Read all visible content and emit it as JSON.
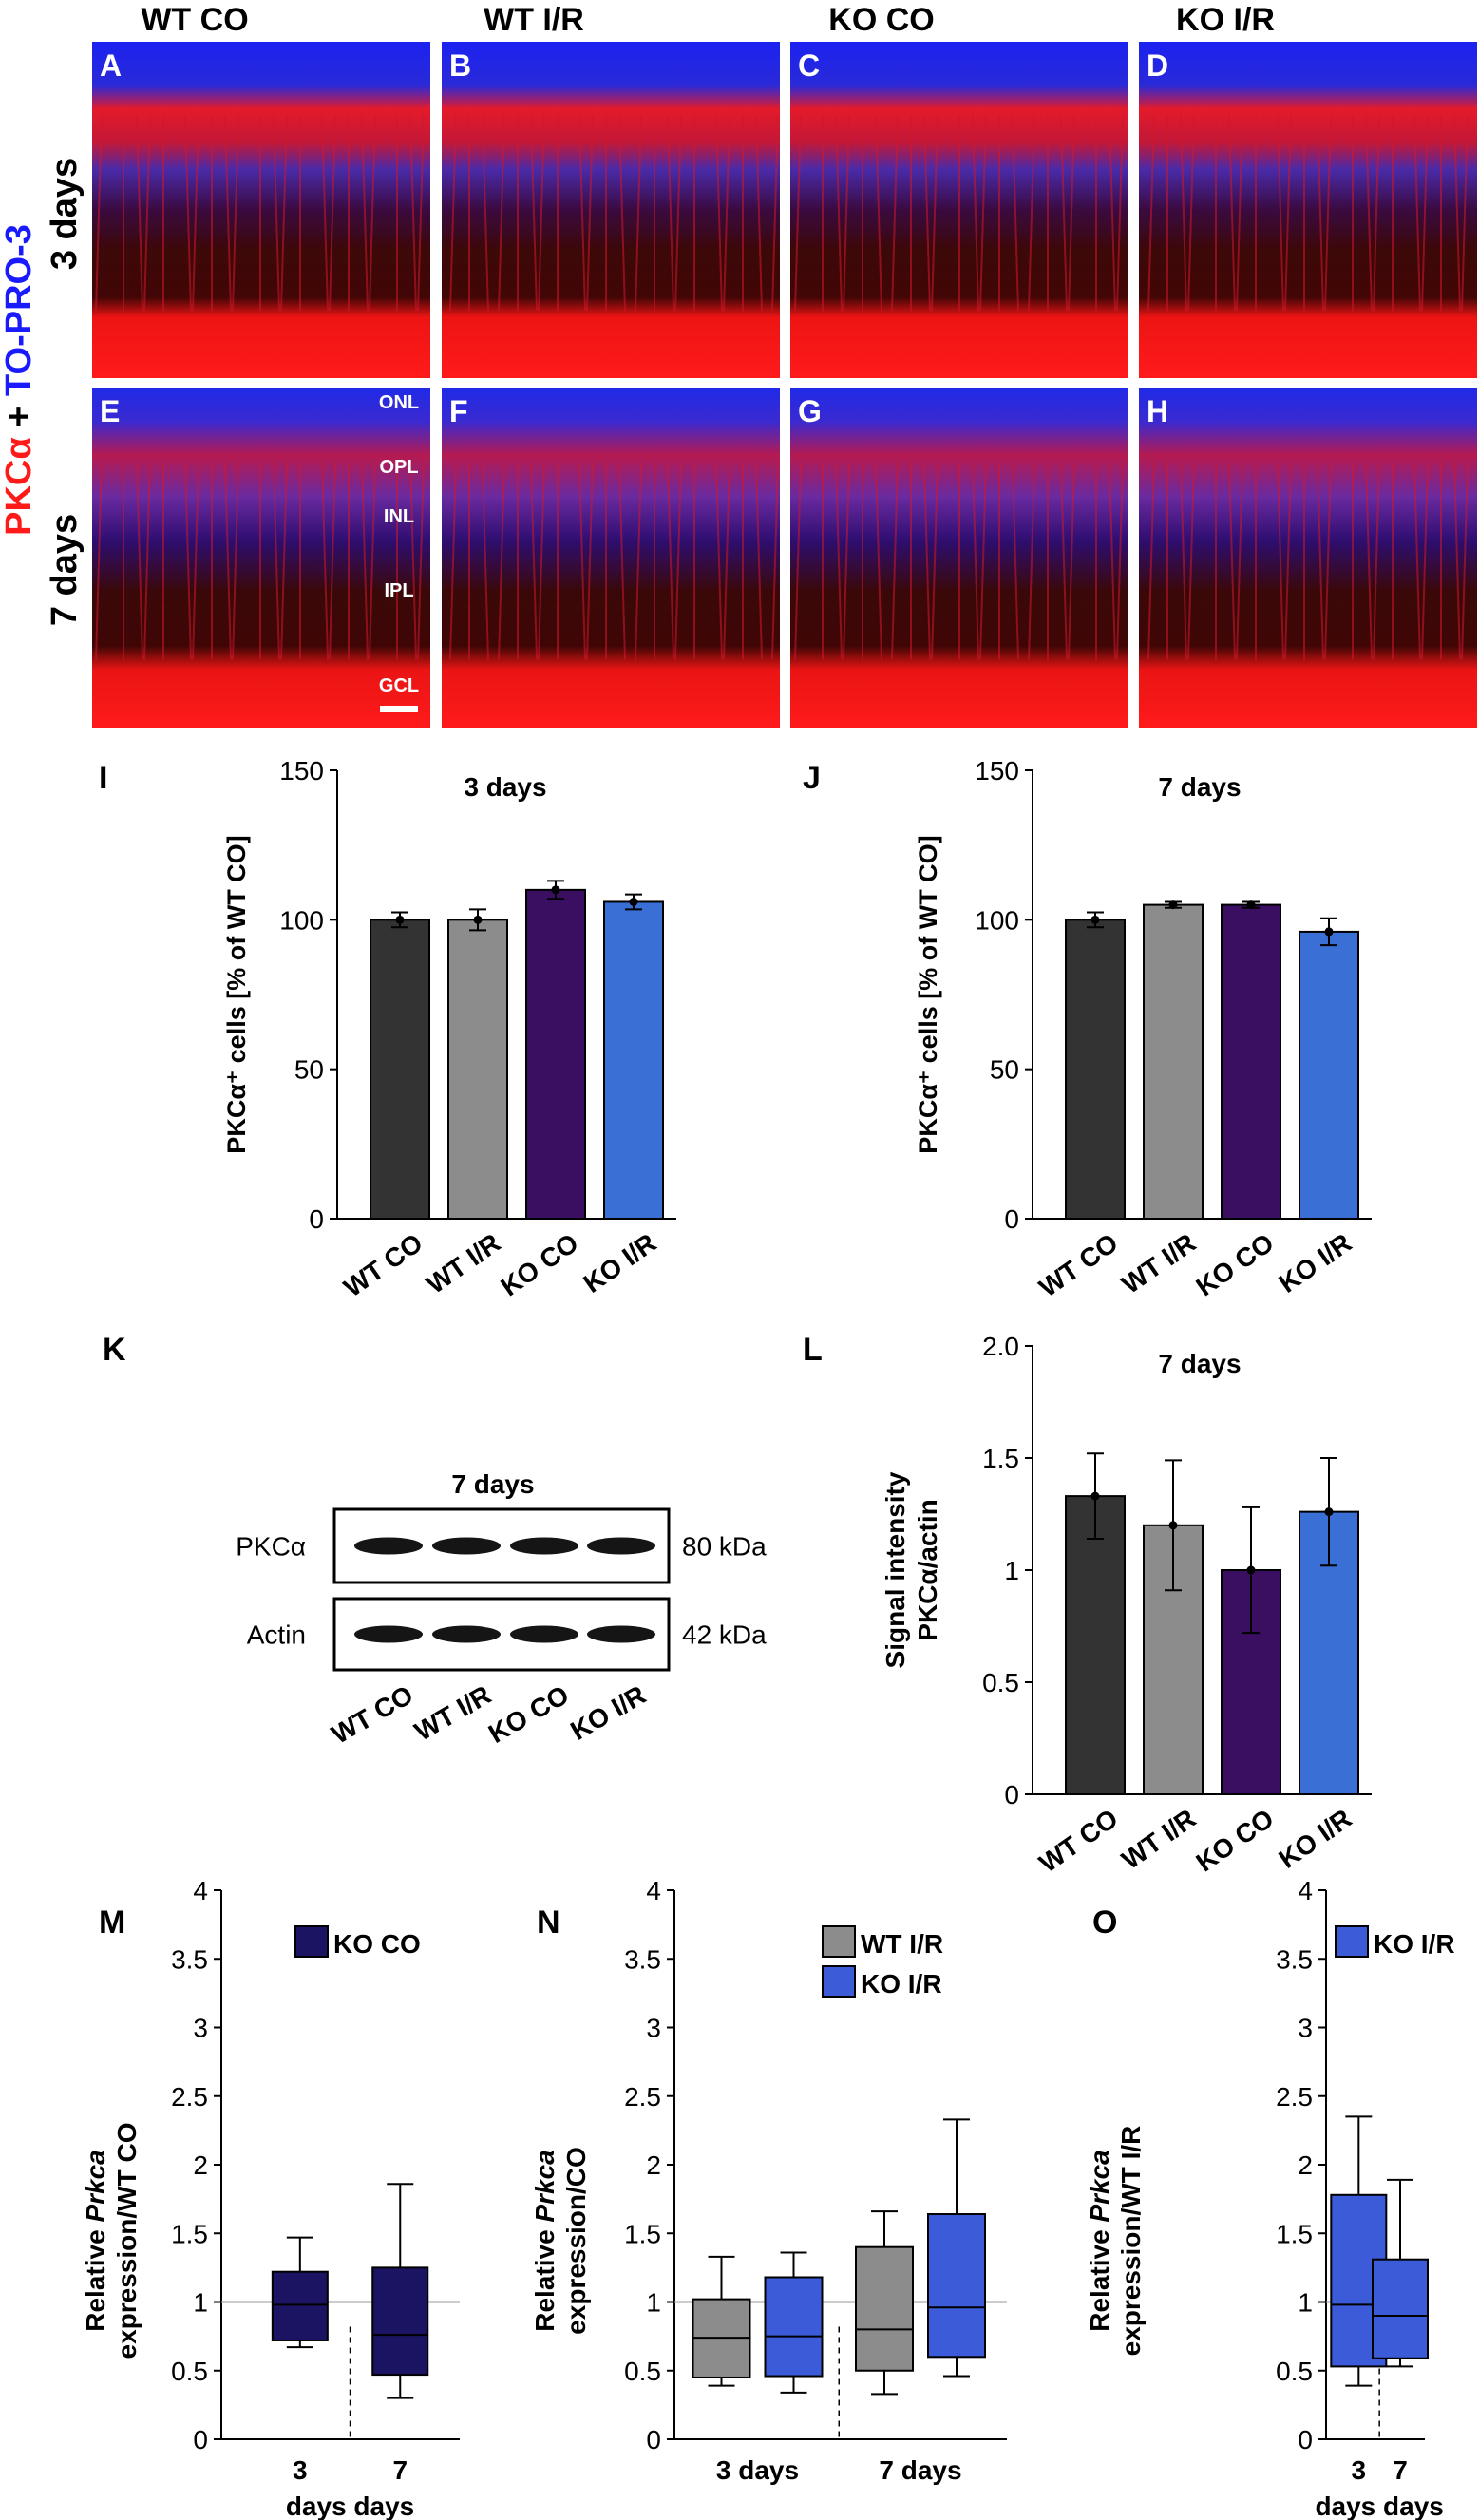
{
  "colors": {
    "WT CO": "#333333",
    "WT I/R": "#8c8c8c",
    "KO CO": "#3a0f62",
    "KO I/R": "#3a6fd6",
    "KO CO box": "#1b1463",
    "KO I/R box": "#3b5bd9",
    "WT I/R box": "#8c8c8c",
    "stain_red": "#ff1a1a",
    "stain_blue": "#1a1aff"
  },
  "micrograph": {
    "columns": [
      "WT CO",
      "WT I/R",
      "KO CO",
      "KO I/R"
    ],
    "rows": [
      "3 days",
      "7 days"
    ],
    "row_label_stain": [
      "PKCα",
      " + ",
      "TO-PRO-3"
    ],
    "panel_letters": [
      "A",
      "B",
      "C",
      "D",
      "E",
      "F",
      "G",
      "H"
    ],
    "layers": [
      "ONL",
      "OPL",
      "INL",
      "IPL",
      "GCL"
    ]
  },
  "blot": {
    "letter": "K",
    "title": "7 days",
    "bands": [
      {
        "protein": "PKCα",
        "size": "80 kDa"
      },
      {
        "protein": "Actin",
        "size": "42 kDa"
      }
    ],
    "lanes": [
      "WT CO",
      "WT I/R",
      "KO CO",
      "KO I/R"
    ]
  },
  "chart_data": [
    {
      "panel": "I",
      "type": "bar",
      "title": "3 days",
      "ylabel": "PKCα⁺ cells [% of WT CO]",
      "ylim": [
        0,
        150
      ],
      "yticks": [
        0,
        50,
        100,
        150
      ],
      "categories": [
        "WT CO",
        "WT I/R",
        "KO CO",
        "KO I/R"
      ],
      "values": [
        100,
        100,
        110,
        106
      ],
      "errors": [
        2.5,
        3.5,
        3,
        2.5
      ]
    },
    {
      "panel": "J",
      "type": "bar",
      "title": "7 days",
      "ylabel": "PKCα⁺ cells [% of WT CO]",
      "ylim": [
        0,
        150
      ],
      "yticks": [
        0,
        50,
        100,
        150
      ],
      "categories": [
        "WT CO",
        "WT I/R",
        "KO CO",
        "KO I/R"
      ],
      "values": [
        100,
        105,
        105,
        96
      ],
      "errors": [
        2.5,
        1,
        1,
        4.5
      ]
    },
    {
      "panel": "L",
      "type": "bar",
      "title": "7 days",
      "ylabel": [
        "Signal intensity",
        "PKCα/actin"
      ],
      "ylim": [
        0,
        2
      ],
      "yticks": [
        "0",
        "0.5",
        "1",
        "1.5",
        "2.0"
      ],
      "categories": [
        "WT CO",
        "WT I/R",
        "KO CO",
        "KO I/R"
      ],
      "values": [
        1.33,
        1.2,
        1.0,
        1.26
      ],
      "errors": [
        0.19,
        0.29,
        0.28,
        0.24
      ]
    },
    {
      "panel": "M",
      "type": "box",
      "ylim": [
        0,
        4
      ],
      "yticks": [
        "0",
        "0.5",
        "1",
        "1.5",
        "2",
        "2.5",
        "3",
        "3.5",
        "4"
      ],
      "ylabel_parts": [
        "Relative ",
        "Prkca",
        "expression/WT CO"
      ],
      "legend": [
        "KO CO"
      ],
      "groups": [
        "3",
        "7"
      ],
      "group_line2": "days days",
      "series": [
        {
          "name": "KO CO",
          "stats": [
            {
              "min": 0.67,
              "q1": 0.72,
              "median": 0.98,
              "q3": 1.22,
              "max": 1.47
            },
            {
              "min": 0.3,
              "q1": 0.47,
              "median": 0.76,
              "q3": 1.25,
              "max": 1.86
            }
          ]
        }
      ]
    },
    {
      "panel": "N",
      "type": "box",
      "ylim": [
        0,
        4
      ],
      "yticks": [
        "0",
        "0.5",
        "1",
        "1.5",
        "2",
        "2.5",
        "3",
        "3.5",
        "4"
      ],
      "ylabel_parts": [
        "Relative ",
        "Prkca",
        "expression/CO"
      ],
      "legend": [
        "WT I/R",
        "KO I/R"
      ],
      "groups": [
        "3 days",
        "7 days"
      ],
      "series": [
        {
          "name": "WT I/R",
          "stats": [
            {
              "min": 0.39,
              "q1": 0.45,
              "median": 0.74,
              "q3": 1.02,
              "max": 1.33
            },
            {
              "min": 0.33,
              "q1": 0.5,
              "median": 0.8,
              "q3": 1.4,
              "max": 1.66
            }
          ]
        },
        {
          "name": "KO I/R",
          "stats": [
            {
              "min": 0.34,
              "q1": 0.46,
              "median": 0.75,
              "q3": 1.18,
              "max": 1.36
            },
            {
              "min": 0.46,
              "q1": 0.6,
              "median": 0.96,
              "q3": 1.64,
              "max": 2.33
            }
          ]
        }
      ]
    },
    {
      "panel": "O",
      "type": "box",
      "ylim": [
        0,
        4
      ],
      "yticks": [
        "0",
        "0.5",
        "1",
        "1.5",
        "2",
        "2.5",
        "3",
        "3.5",
        "4"
      ],
      "ylabel_parts": [
        "Relative ",
        "Prkca",
        "expression/WT I/R"
      ],
      "legend": [
        "KO I/R"
      ],
      "groups": [
        "3",
        "7"
      ],
      "group_line2": "days days",
      "series": [
        {
          "name": "KO I/R",
          "stats": [
            {
              "min": 0.39,
              "q1": 0.53,
              "median": 0.98,
              "q3": 1.78,
              "max": 2.35
            },
            {
              "min": 0.53,
              "q1": 0.59,
              "median": 0.9,
              "q3": 1.31,
              "max": 1.89
            }
          ]
        }
      ]
    }
  ]
}
